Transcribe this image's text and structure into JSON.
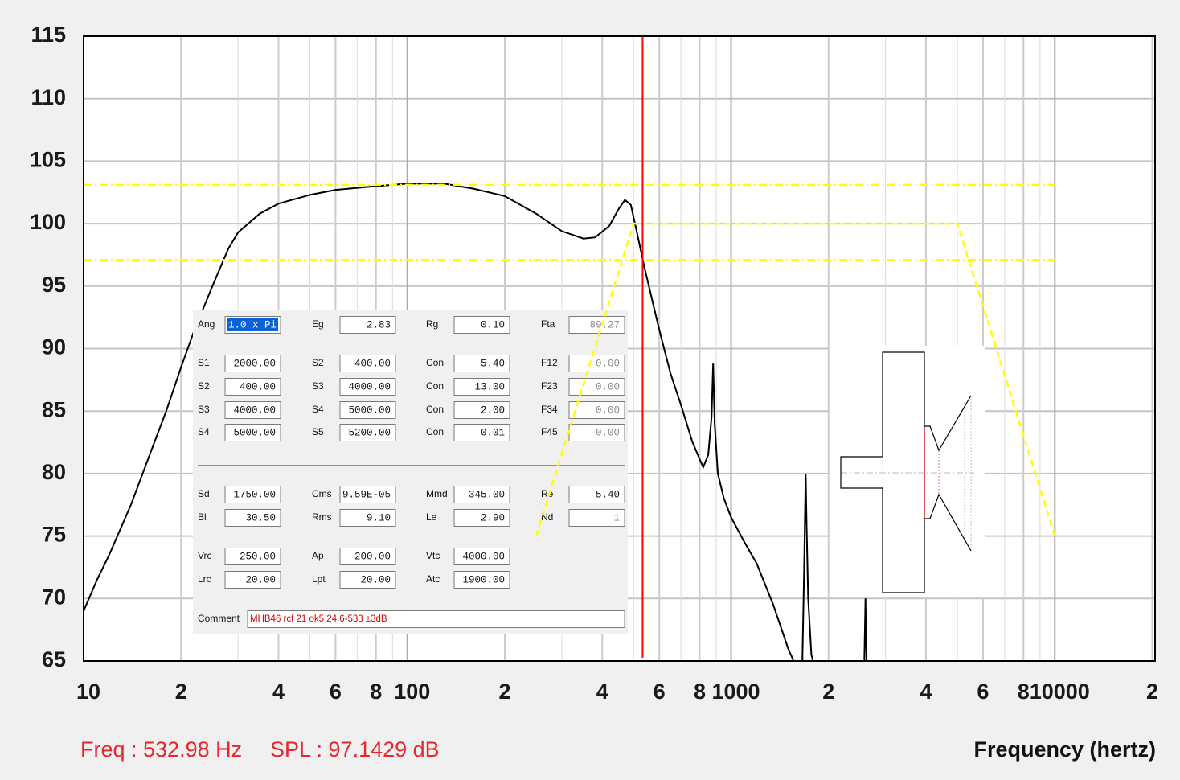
{
  "chart_data": {
    "type": "line",
    "xlabel": "Frequency (hertz)",
    "xlim": [
      10,
      20400
    ],
    "ylim": [
      65,
      115
    ],
    "xscale": "log",
    "grid": true,
    "yticks": [
      65,
      70,
      75,
      80,
      85,
      90,
      95,
      100,
      105,
      110,
      115
    ],
    "xticks": [
      10,
      {
        "value": 20,
        "label": "2"
      },
      {
        "value": 40,
        "label": "4"
      },
      {
        "value": 60,
        "label": "6"
      },
      {
        "value": 80,
        "label": "8"
      },
      100,
      {
        "value": 200,
        "label": "2"
      },
      {
        "value": 400,
        "label": "4"
      },
      {
        "value": 600,
        "label": "6"
      },
      {
        "value": 800,
        "label": "8"
      },
      1000,
      {
        "value": 2000,
        "label": "2"
      },
      {
        "value": 4000,
        "label": "4"
      },
      {
        "value": 6000,
        "label": "6"
      },
      {
        "value": 8000,
        "label": "8"
      },
      10000,
      {
        "value": 20000,
        "label": "2"
      }
    ],
    "xminor": [
      30,
      50,
      70,
      90,
      300,
      500,
      700,
      900,
      3000,
      5000,
      7000,
      9000
    ],
    "series": [
      {
        "color": "#000000",
        "dash": "none",
        "x": [
          10,
          11,
          12,
          14,
          16,
          18,
          20,
          22,
          25,
          28,
          30,
          35,
          40,
          50,
          60,
          80,
          100,
          130,
          160,
          200,
          250,
          300,
          350,
          380,
          420,
          450,
          470,
          490,
          510,
          540,
          600,
          650,
          700,
          760,
          820,
          850,
          870,
          880,
          890,
          910,
          950,
          1000,
          1100,
          1200,
          1350,
          1500,
          1560,
          1600,
          1660,
          1680,
          1700,
          1710,
          1730,
          1770,
          1790,
          2000,
          2580,
          2600,
          2620
        ],
        "values": [
          69,
          71.5,
          73.5,
          77.5,
          81.5,
          85,
          88.5,
          91.5,
          95,
          98,
          99.3,
          100.8,
          101.6,
          102.3,
          102.7,
          103.0,
          103.2,
          103.2,
          102.8,
          102.2,
          100.8,
          99.4,
          98.8,
          98.9,
          99.8,
          101.2,
          101.9,
          101.5,
          99.5,
          96.5,
          91.5,
          88,
          85.5,
          82.5,
          80.5,
          81.5,
          84.5,
          88.8,
          84,
          80,
          78,
          76.5,
          74.5,
          72.8,
          69.5,
          66,
          65,
          null,
          65,
          72,
          80,
          76,
          70,
          65.5,
          65,
          null,
          65,
          70,
          65
        ]
      },
      {
        "color": "#ffff00",
        "dash": "10 4 2 4",
        "x": [
          10,
          10000
        ],
        "values": [
          103.1,
          103.1
        ]
      },
      {
        "color": "#ffff00",
        "dash": "10 4 2 4",
        "x": [
          10,
          10000
        ],
        "values": [
          97.1,
          97.1
        ]
      },
      {
        "color": "#ffff00",
        "dash": "8 5",
        "x": [
          250,
          500,
          5000,
          10000
        ],
        "values": [
          75,
          100,
          100,
          75
        ]
      }
    ],
    "cursor": {
      "freq": 532.98,
      "spl": 97.1429,
      "color": "#ff0000",
      "freq_label": "Freq : 532.98 Hz",
      "spl_label": "SPL : 97.1429 dB"
    }
  },
  "panel": {
    "rows": [
      [
        {
          "label": "Ang",
          "value": "1.0 x Pi"
        },
        {
          "label": "Eg",
          "value": "2.83"
        },
        {
          "label": "Rg",
          "value": "0.10"
        },
        {
          "label": "Fta",
          "value": "89.27"
        }
      ],
      [
        {
          "label": "S1",
          "value": "2000.00"
        },
        {
          "label": "S2",
          "value": "400.00"
        },
        {
          "label": "Con",
          "value": "5.40"
        },
        {
          "label": "F12",
          "value": "0.00"
        }
      ],
      [
        {
          "label": "S2",
          "value": "400.00"
        },
        {
          "label": "S3",
          "value": "4000.00"
        },
        {
          "label": "Con",
          "value": "13.00"
        },
        {
          "label": "F23",
          "value": "0.00"
        }
      ],
      [
        {
          "label": "S3",
          "value": "4000.00"
        },
        {
          "label": "S4",
          "value": "5000.00"
        },
        {
          "label": "Con",
          "value": "2.00"
        },
        {
          "label": "F34",
          "value": "0.00"
        }
      ],
      [
        {
          "label": "S4",
          "value": "5000.00"
        },
        {
          "label": "S5",
          "value": "5200.00"
        },
        {
          "label": "Con",
          "value": "0.01"
        },
        {
          "label": "F45",
          "value": "0.00"
        }
      ],
      [
        {
          "label": "Sd",
          "value": "1750.00"
        },
        {
          "label": "Cms",
          "value": "9.59E-05"
        },
        {
          "label": "Mmd",
          "value": "345.00"
        },
        {
          "label": "Re",
          "value": "5.40"
        }
      ],
      [
        {
          "label": "Bl",
          "value": "30.50"
        },
        {
          "label": "Rms",
          "value": "9.10"
        },
        {
          "label": "Le",
          "value": "2.90"
        },
        {
          "label": "Nd",
          "value": "1"
        }
      ],
      [
        {
          "label": "Vrc",
          "value": "250.00"
        },
        {
          "label": "Ap",
          "value": "200.00"
        },
        {
          "label": "Vtc",
          "value": "4000.00"
        }
      ],
      [
        {
          "label": "Lrc",
          "value": "20.00"
        },
        {
          "label": "Lpt",
          "value": "20.00"
        },
        {
          "label": "Atc",
          "value": "1900.00"
        }
      ]
    ],
    "comment_label": "Comment",
    "comment": "MHB46 rcf 21 ok5 24.6-533 ±3dB"
  }
}
